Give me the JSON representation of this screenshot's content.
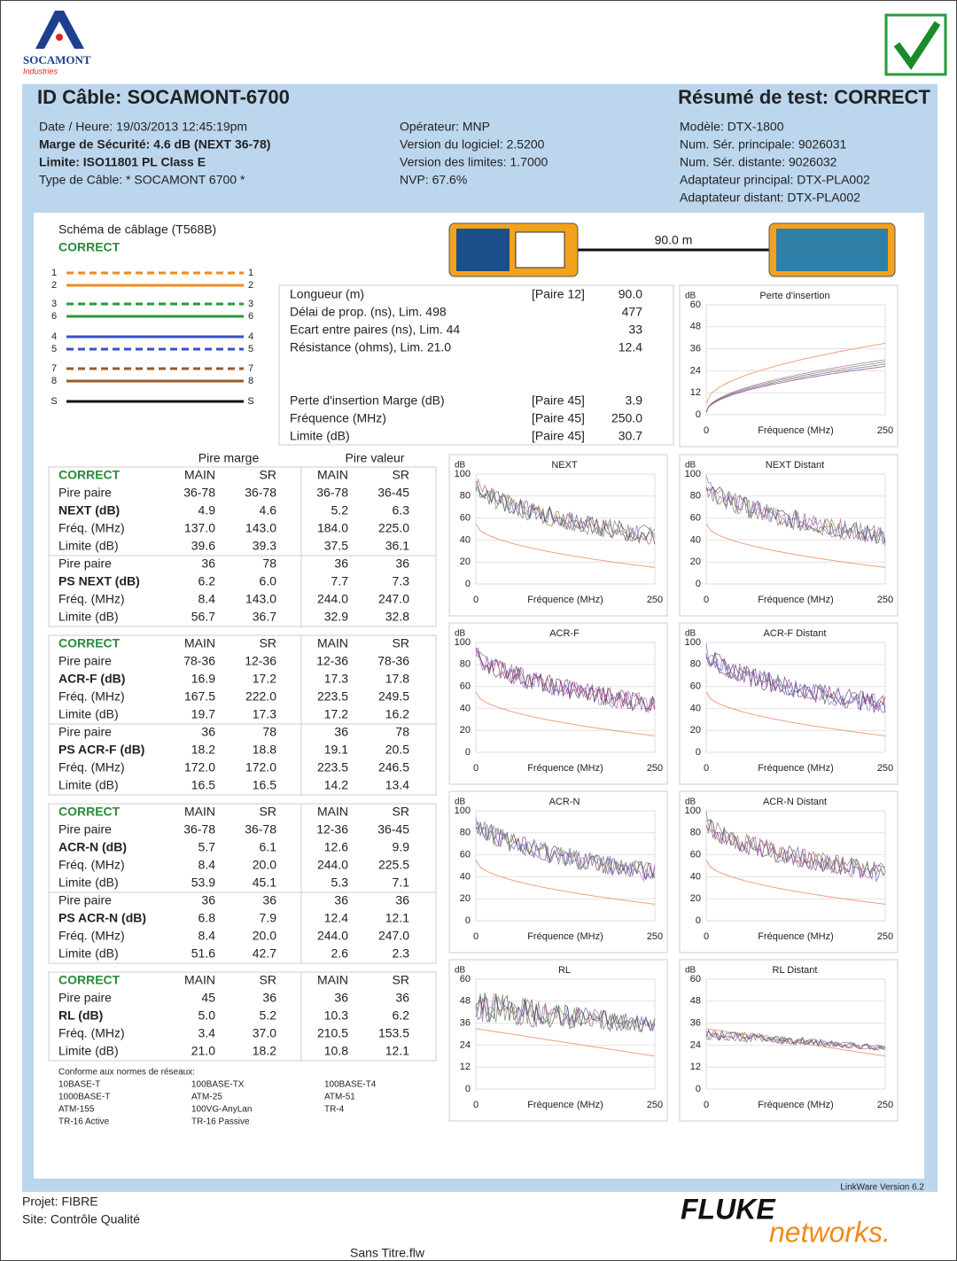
{
  "header": {
    "logo_text": "SOCAMONT",
    "logo_sub": "Industries",
    "id_cable": "ID Câble: SOCAMONT-6700",
    "summary": "Résumé de test: CORRECT"
  },
  "info": {
    "col1": [
      "Date / Heure: 19/03/2013 12:45:19pm",
      "Marge de Sécurité: 4.6 dB (NEXT 36-78)",
      "Limite: ISO11801 PL Class E",
      "Type de Câble: * SOCAMONT 6700 *"
    ],
    "col2": [
      "Opérateur: MNP",
      "Version du logiciel: 2.5200",
      "Version des limites: 1.7000",
      "NVP: 67.6%"
    ],
    "col3": [
      "Modèle: DTX-1800",
      "Num. Sér. principale: 9026031",
      "Num. Sér. distante: 9026032",
      "Adaptateur principal: DTX-PLA002",
      "Adaptateur distant: DTX-PLA002"
    ]
  },
  "wiremap": {
    "title": "Schéma de câblage (T568B)",
    "status": "CORRECT",
    "pins": [
      "1",
      "2",
      "3",
      "6",
      "4",
      "5",
      "7",
      "8",
      "S"
    ]
  },
  "device": {
    "length": "90.0 m"
  },
  "length_table": [
    {
      "label": "Longueur (m)",
      "pair": "[Paire 12]",
      "value": "90.0"
    },
    {
      "label": "Délai de prop. (ns), Lim. 498",
      "value": "477"
    },
    {
      "label": "Ecart entre paires (ns), Lim. 44",
      "value": "33"
    },
    {
      "label": "Résistance (ohms), Lim. 21.0",
      "value": "12.4"
    },
    {
      "label": "Perte d'insertion Marge (dB)",
      "pair": "[Paire 45]",
      "value": "3.9"
    },
    {
      "label": "Fréquence (MHz)",
      "pair": "[Paire 45]",
      "value": "250.0"
    },
    {
      "label": "Limite (dB)",
      "pair": "[Paire 45]",
      "value": "30.7"
    }
  ],
  "results": {
    "group_labels": [
      "Pire marge",
      "Pire valeur"
    ],
    "blocks": [
      {
        "status": "CORRECT",
        "columns": [
          "MAIN",
          "SR",
          "MAIN",
          "SR"
        ],
        "rows": [
          [
            "Pire paire",
            "36-78",
            "36-78",
            "36-78",
            "36-45"
          ],
          [
            "NEXT (dB)",
            "4.9",
            "4.6",
            "5.2",
            "6.3"
          ],
          [
            "Fréq. (MHz)",
            "137.0",
            "143.0",
            "184.0",
            "225.0"
          ],
          [
            "Limite (dB)",
            "39.6",
            "39.3",
            "37.5",
            "36.1"
          ],
          [
            "Pire paire",
            "36",
            "78",
            "36",
            "36"
          ],
          [
            "PS NEXT (dB)",
            "6.2",
            "6.0",
            "7.7",
            "7.3"
          ],
          [
            "Fréq. (MHz)",
            "8.4",
            "143.0",
            "244.0",
            "247.0"
          ],
          [
            "Limite (dB)",
            "56.7",
            "36.7",
            "32.9",
            "32.8"
          ]
        ]
      },
      {
        "status": "CORRECT",
        "columns": [
          "MAIN",
          "SR",
          "MAIN",
          "SR"
        ],
        "rows": [
          [
            "Pire paire",
            "78-36",
            "12-36",
            "12-36",
            "78-36"
          ],
          [
            "ACR-F (dB)",
            "16.9",
            "17.2",
            "17.3",
            "17.8"
          ],
          [
            "Fréq. (MHz)",
            "167.5",
            "222.0",
            "223.5",
            "249.5"
          ],
          [
            "Limite (dB)",
            "19.7",
            "17.3",
            "17.2",
            "16.2"
          ],
          [
            "Pire paire",
            "36",
            "78",
            "36",
            "78"
          ],
          [
            "PS ACR-F (dB)",
            "18.2",
            "18.8",
            "19.1",
            "20.5"
          ],
          [
            "Fréq. (MHz)",
            "172.0",
            "172.0",
            "223.5",
            "246.5"
          ],
          [
            "Limite (dB)",
            "16.5",
            "16.5",
            "14.2",
            "13.4"
          ]
        ]
      },
      {
        "status": "CORRECT",
        "columns": [
          "MAIN",
          "SR",
          "MAIN",
          "SR"
        ],
        "rows": [
          [
            "Pire paire",
            "36-78",
            "36-78",
            "12-36",
            "36-45"
          ],
          [
            "ACR-N (dB)",
            "5.7",
            "6.1",
            "12.6",
            "9.9"
          ],
          [
            "Fréq. (MHz)",
            "8.4",
            "20.0",
            "244.0",
            "225.5"
          ],
          [
            "Limite (dB)",
            "53.9",
            "45.1",
            "5.3",
            "7.1"
          ],
          [
            "Pire paire",
            "36",
            "36",
            "36",
            "36"
          ],
          [
            "PS ACR-N (dB)",
            "6.8",
            "7.9",
            "12.4",
            "12.1"
          ],
          [
            "Fréq. (MHz)",
            "8.4",
            "20.0",
            "244.0",
            "247.0"
          ],
          [
            "Limite (dB)",
            "51.6",
            "42.7",
            "2.6",
            "2.3"
          ]
        ]
      },
      {
        "status": "CORRECT",
        "columns": [
          "MAIN",
          "SR",
          "MAIN",
          "SR"
        ],
        "rows": [
          [
            "Pire paire",
            "45",
            "36",
            "36",
            "36"
          ],
          [
            "RL (dB)",
            "5.0",
            "5.2",
            "10.3",
            "6.2"
          ],
          [
            "Fréq. (MHz)",
            "3.4",
            "37.0",
            "210.5",
            "153.5"
          ],
          [
            "Limite (dB)",
            "21.0",
            "18.2",
            "10.8",
            "12.1"
          ]
        ]
      }
    ]
  },
  "compliance": {
    "title": "Conforme aux normes de réseaux:",
    "columns": [
      [
        "10BASE-T",
        "1000BASE-T",
        "ATM-155",
        "TR-16 Active"
      ],
      [
        "100BASE-TX",
        "ATM-25",
        "100VG-AnyLan",
        "TR-16 Passive"
      ],
      [
        "100BASE-T4",
        "ATM-51",
        "TR-4"
      ]
    ]
  },
  "charts": [
    {
      "title": "Perte d'insertion",
      "ylabel": "dB",
      "yticks": [
        60,
        48,
        36,
        24,
        12,
        0
      ],
      "xlabel": "Fréquence (MHz)",
      "xticks": [
        0,
        250
      ]
    },
    {
      "title": "NEXT",
      "ylabel": "dB",
      "yticks": [
        100,
        80,
        60,
        40,
        20,
        0
      ],
      "xlabel": "Fréquence (MHz)",
      "xticks": [
        0,
        250
      ]
    },
    {
      "title": "NEXT Distant",
      "ylabel": "dB",
      "yticks": [
        100,
        80,
        60,
        40,
        20,
        0
      ],
      "xlabel": "Fréquence (MHz)",
      "xticks": [
        0,
        250
      ]
    },
    {
      "title": "ACR-F",
      "ylabel": "dB",
      "yticks": [
        100,
        80,
        60,
        40,
        20,
        0
      ],
      "xlabel": "Fréquence (MHz)",
      "xticks": [
        0,
        250
      ]
    },
    {
      "title": "ACR-F Distant",
      "ylabel": "dB",
      "yticks": [
        100,
        80,
        60,
        40,
        20,
        0
      ],
      "xlabel": "Fréquence (MHz)",
      "xticks": [
        0,
        250
      ]
    },
    {
      "title": "ACR-N",
      "ylabel": "dB",
      "yticks": [
        100,
        80,
        60,
        40,
        20,
        0
      ],
      "xlabel": "Fréquence (MHz)",
      "xticks": [
        0,
        250
      ]
    },
    {
      "title": "ACR-N Distant",
      "ylabel": "dB",
      "yticks": [
        100,
        80,
        60,
        40,
        20,
        0
      ],
      "xlabel": "Fréquence (MHz)",
      "xticks": [
        0,
        250
      ]
    },
    {
      "title": "RL",
      "ylabel": "dB",
      "yticks": [
        60,
        48,
        36,
        24,
        12,
        0
      ],
      "xlabel": "Fréquence (MHz)",
      "xticks": [
        0,
        250
      ]
    },
    {
      "title": "RL Distant",
      "ylabel": "dB",
      "yticks": [
        60,
        48,
        36,
        24,
        12,
        0
      ],
      "xlabel": "Fréquence (MHz)",
      "xticks": [
        0,
        250
      ]
    }
  ],
  "footer": {
    "linkware": "LinkWare Version 6.2",
    "project": "Projet: FIBRE",
    "site": "Site: Contrôle Qualité",
    "brand": "FLUKE",
    "brand_sub": "networks.",
    "file": "Sans Titre.flw"
  }
}
